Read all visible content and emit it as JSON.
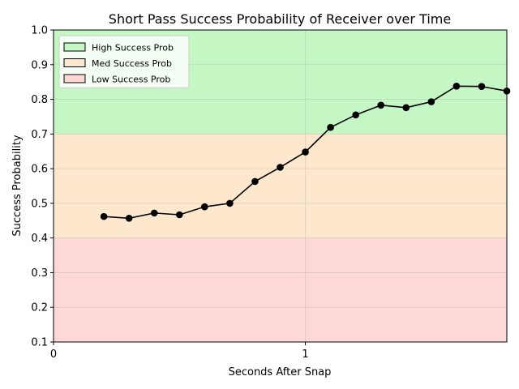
{
  "chart_data": {
    "type": "line",
    "title": "Short Pass Success Probability of Receiver over Time",
    "xlabel": "Seconds After Snap",
    "ylabel": "Success Probability",
    "xlim": [
      0,
      1.8
    ],
    "ylim": [
      0.1,
      1.0
    ],
    "x_ticks": [
      0,
      1
    ],
    "x_tick_labels": [
      "0",
      "1"
    ],
    "y_ticks": [
      0.1,
      0.2,
      0.3,
      0.4,
      0.5,
      0.6,
      0.7,
      0.8,
      0.9,
      1.0
    ],
    "y_tick_labels": [
      "0.1",
      "0.2",
      "0.3",
      "0.4",
      "0.5",
      "0.6",
      "0.7",
      "0.8",
      "0.9",
      "1.0"
    ],
    "grid": true,
    "legend_position": "top-left",
    "bands": [
      {
        "name": "High Success Prob",
        "from": 0.7,
        "to": 1.0,
        "color": "#c5f7c5"
      },
      {
        "name": "Med Success Prob",
        "from": 0.4,
        "to": 0.7,
        "color": "#fde8cd"
      },
      {
        "name": "Low Success Prob",
        "from": 0.1,
        "to": 0.4,
        "color": "#fed7d7"
      }
    ],
    "series": [
      {
        "name": "Receiver",
        "color": "#000000",
        "x": [
          0.2,
          0.3,
          0.4,
          0.5,
          0.6,
          0.7,
          0.8,
          0.9,
          1.0,
          1.1,
          1.2,
          1.3,
          1.4,
          1.5,
          1.6,
          1.7,
          1.8
        ],
        "values": [
          0.462,
          0.457,
          0.472,
          0.467,
          0.49,
          0.5,
          0.563,
          0.604,
          0.648,
          0.719,
          0.755,
          0.783,
          0.776,
          0.793,
          0.838,
          0.837,
          0.824
        ]
      }
    ]
  }
}
